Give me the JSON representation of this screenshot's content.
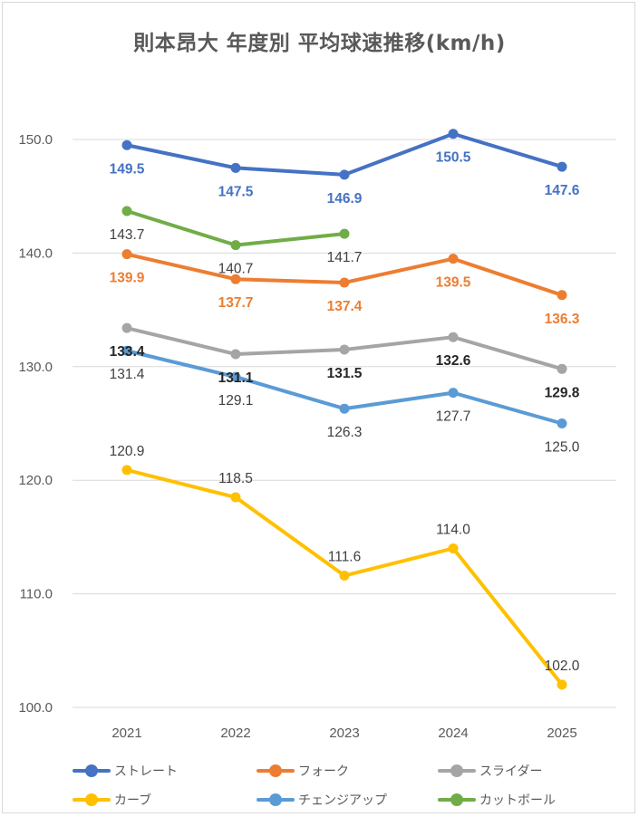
{
  "chart_data": {
    "type": "line",
    "title": "則本昂大 年度別 平均球速推移(km/h)",
    "categories": [
      "2021",
      "2022",
      "2023",
      "2024",
      "2025"
    ],
    "ylim": [
      100,
      150
    ],
    "yticks": [
      "100.0",
      "110.0",
      "120.0",
      "130.0",
      "140.0",
      "150.0"
    ],
    "grid": true,
    "legend_position": "bottom",
    "series": [
      {
        "name": "ストレート",
        "color": "#4472C4",
        "values": [
          149.5,
          147.5,
          146.9,
          150.5,
          147.6
        ],
        "labels": [
          "149.5",
          "147.5",
          "146.9",
          "150.5",
          "147.6"
        ],
        "label_color": "#4472C4",
        "label_bold": true
      },
      {
        "name": "フォーク",
        "color": "#ED7D31",
        "values": [
          139.9,
          137.7,
          137.4,
          139.5,
          136.3
        ],
        "labels": [
          "139.9",
          "137.7",
          "137.4",
          "139.5",
          "136.3"
        ],
        "label_color": "#ED7D31",
        "label_bold": true
      },
      {
        "name": "スライダー",
        "color": "#A5A5A5",
        "values": [
          133.4,
          131.1,
          131.5,
          132.6,
          129.8
        ],
        "labels": [
          "133.4",
          "131.1",
          "131.5",
          "132.6",
          "129.8"
        ],
        "label_color": "#262626",
        "label_bold": true
      },
      {
        "name": "カーブ",
        "color": "#FFC000",
        "values": [
          120.9,
          118.5,
          111.6,
          114.0,
          102.0
        ],
        "labels": [
          "120.9",
          "118.5",
          "111.6",
          "114.0",
          "102.0"
        ],
        "label_color": "#404040",
        "label_bold": false
      },
      {
        "name": "チェンジアップ",
        "color": "#5B9BD5",
        "values": [
          131.4,
          129.1,
          126.3,
          127.7,
          125.0
        ],
        "labels": [
          "131.4",
          "129.1",
          "126.3",
          "127.7",
          "125.0"
        ],
        "label_color": "#404040",
        "label_bold": false
      },
      {
        "name": "カットボール",
        "color": "#70AD47",
        "values": [
          143.7,
          140.7,
          141.7,
          null,
          null
        ],
        "labels": [
          "143.7",
          "140.7",
          "141.7",
          null,
          null
        ],
        "label_color": "#404040",
        "label_bold": false
      }
    ]
  }
}
